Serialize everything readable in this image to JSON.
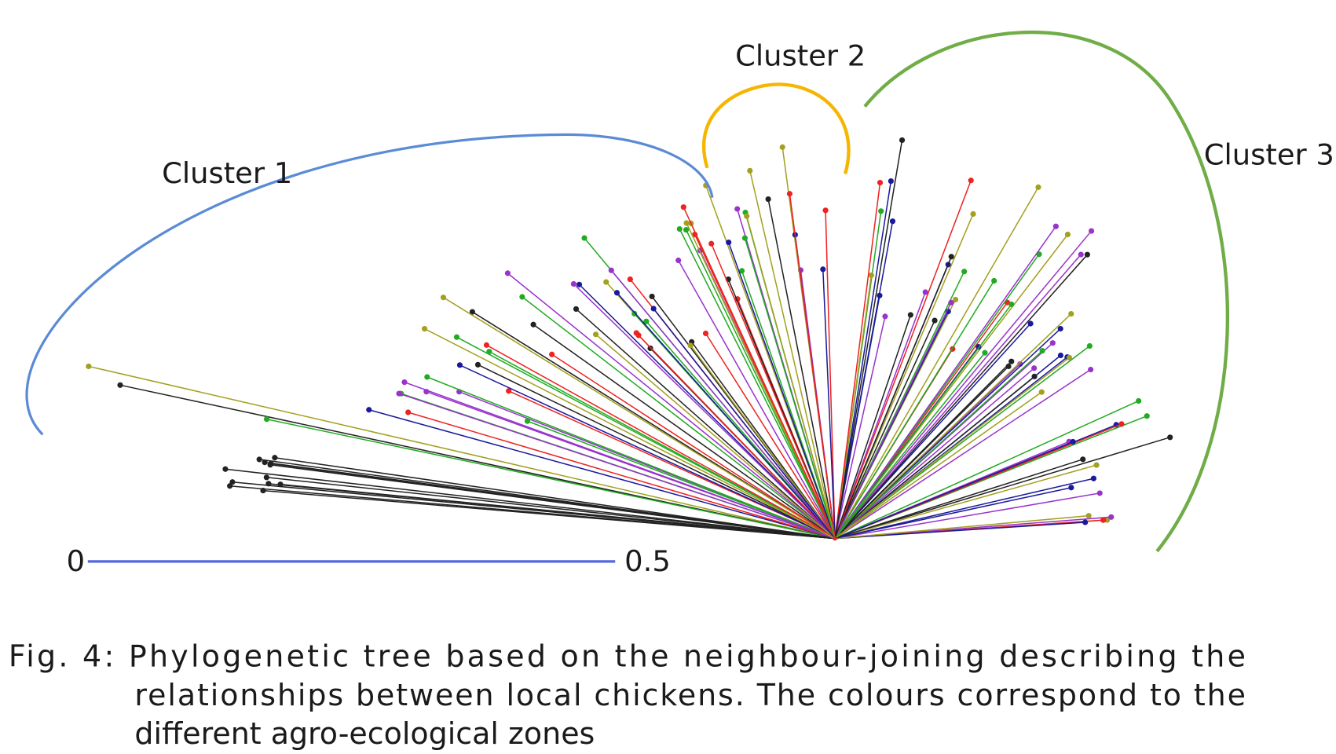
{
  "clusters": [
    {
      "label": "Cluster 1"
    },
    {
      "label": "Cluster 2"
    },
    {
      "label": "Cluster 3"
    }
  ],
  "scale_bar": {
    "start": "0",
    "end": "0.5"
  },
  "caption": {
    "lines": [
      "Fig. 4: Phylogenetic tree based on the neighbour-joining describing the",
      "relationships between local chickens. The colours correspond to the",
      "different agro-ecological zones"
    ]
  }
}
